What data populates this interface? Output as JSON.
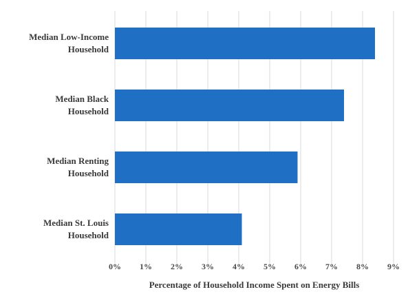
{
  "chart_data": {
    "type": "bar",
    "orientation": "horizontal",
    "categories": [
      [
        "Median Low-Income",
        "Household"
      ],
      [
        "Median Black",
        "Household"
      ],
      [
        "Median Renting",
        "Household"
      ],
      [
        "Median St. Louis",
        "Household"
      ]
    ],
    "values": [
      8.4,
      7.4,
      5.9,
      4.1
    ],
    "xlabel": "Percentage of Household Income Spent on Energy Bills",
    "ylabel": "",
    "xlim": [
      0,
      9
    ],
    "xticks": [
      0,
      1,
      2,
      3,
      4,
      5,
      6,
      7,
      8,
      9
    ],
    "xtick_labels": [
      "0%",
      "1%",
      "2%",
      "3%",
      "4%",
      "5%",
      "6%",
      "7%",
      "8%",
      "9%"
    ],
    "grid": "vertical",
    "bar_color": "#1f6fc5",
    "grid_color": "#d9d9d9"
  }
}
